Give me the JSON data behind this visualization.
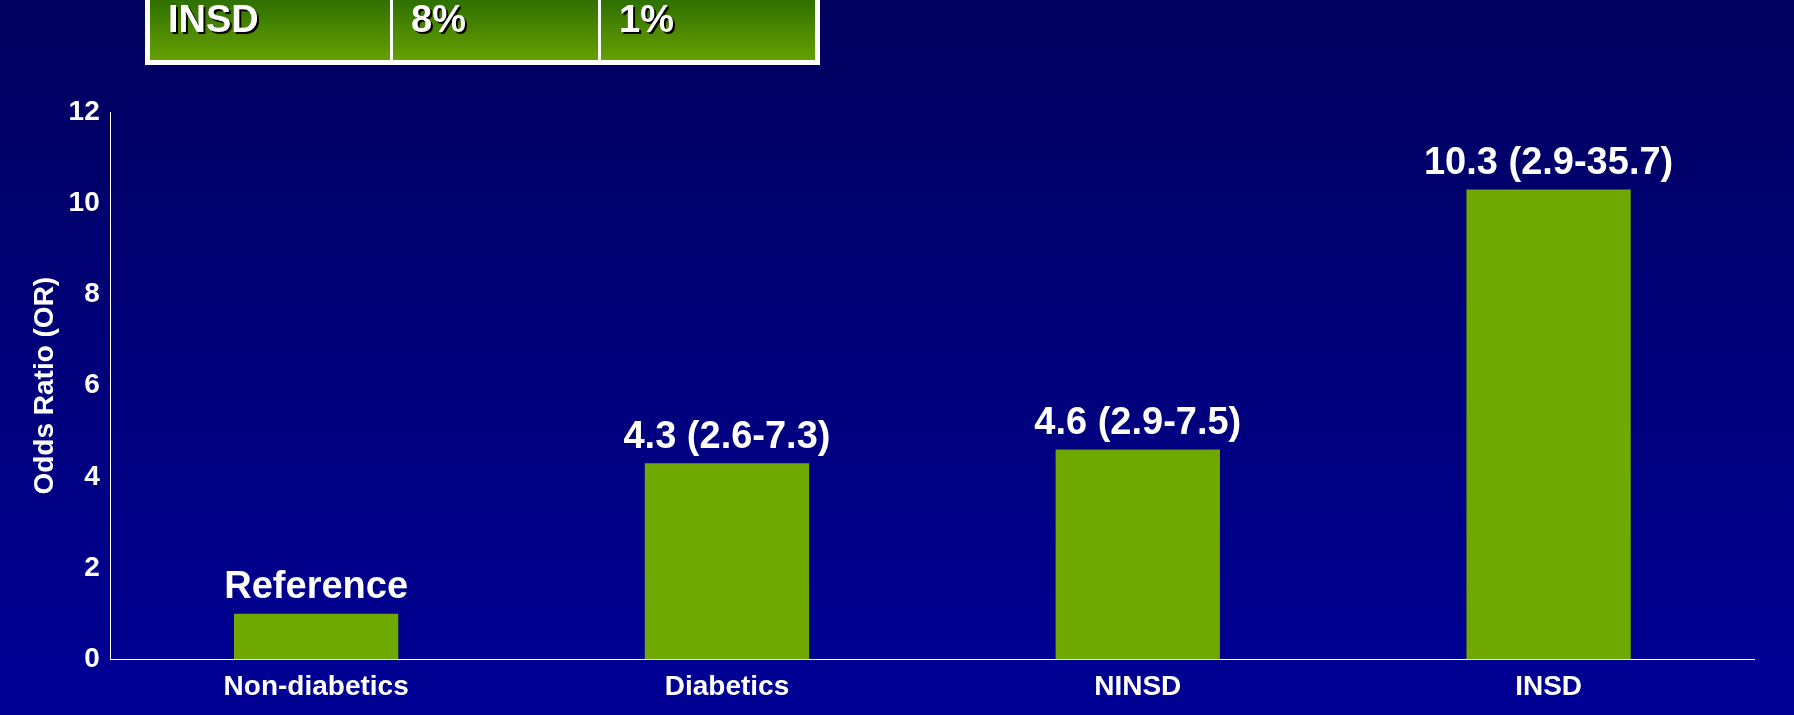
{
  "chart_data": {
    "type": "bar",
    "categories": [
      "Non-diabetics",
      "Diabetics",
      "NINSD",
      "INSD"
    ],
    "values": [
      1,
      4.3,
      4.6,
      10.3
    ],
    "color": "#6fa800",
    "value_labels": [
      "Reference",
      "4.3 (2.6-7.3)",
      "4.6 (2.9-7.5)",
      "10.3 (2.9-35.7)"
    ],
    "ylabel": "Odds Ratio (OR)",
    "ylim": [
      0,
      12
    ],
    "yticks": [
      0,
      2,
      4,
      6,
      8,
      10,
      12
    ],
    "annotations": [
      "INSD",
      "8%",
      "1%"
    ],
    "grid": false,
    "legend": false
  }
}
